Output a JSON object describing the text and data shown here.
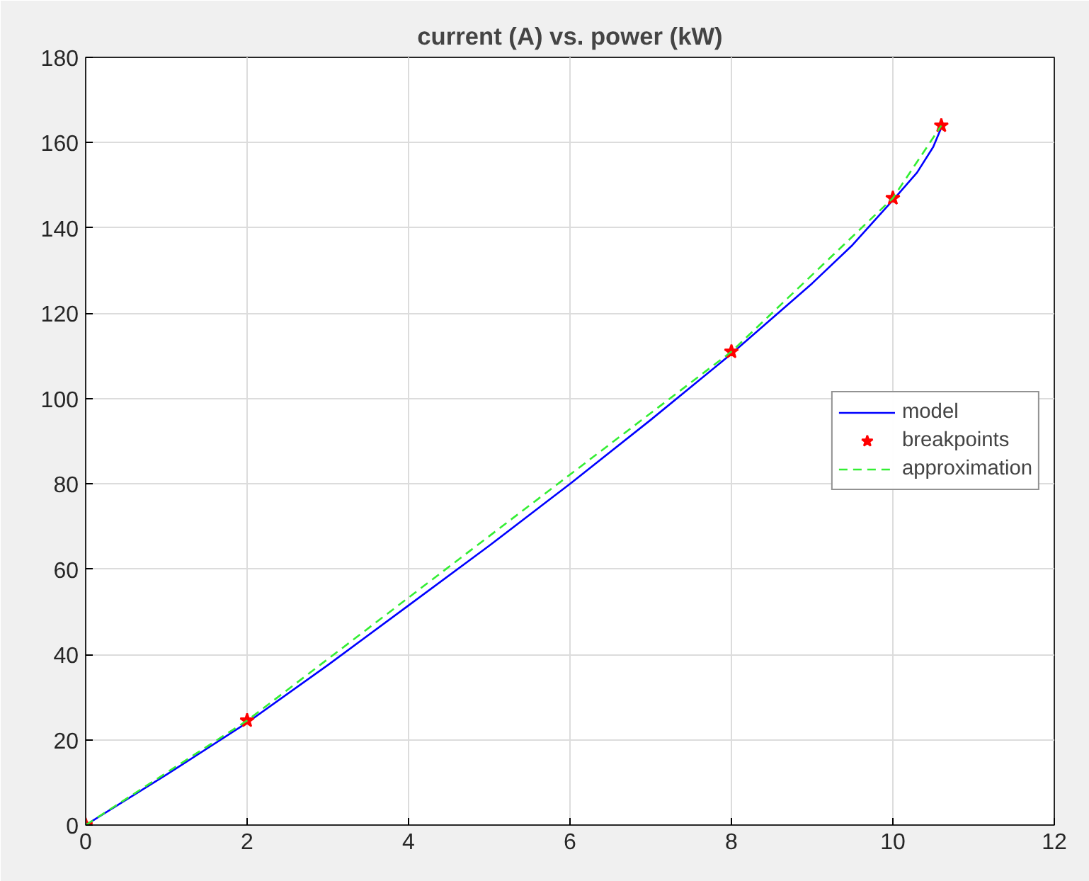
{
  "chart_data": {
    "type": "line",
    "title": "current (A) vs. power (kW)",
    "xlim": [
      0,
      12
    ],
    "ylim": [
      0,
      180
    ],
    "xticks": [
      0,
      2,
      4,
      6,
      8,
      10,
      12
    ],
    "yticks": [
      0,
      20,
      40,
      60,
      80,
      100,
      120,
      140,
      160,
      180
    ],
    "grid": true,
    "legend": "right",
    "series": [
      {
        "name": "model",
        "color": "#0000ff",
        "marker": "none",
        "line_style": "solid",
        "x": [
          0,
          1,
          2,
          3,
          4,
          5,
          6,
          7,
          8,
          9,
          9.5,
          10,
          10.3,
          10.5,
          10.6
        ],
        "values": [
          0,
          11.8,
          24,
          37.5,
          51.5,
          65.5,
          80,
          95,
          110.5,
          127,
          136,
          146.5,
          153,
          159,
          163.5
        ]
      },
      {
        "name": "breakpoints",
        "type": "scatter",
        "color": "#ff0000",
        "marker": "star",
        "x": [
          0,
          2,
          8,
          10,
          10.6
        ],
        "values": [
          0,
          24.5,
          111,
          147,
          164
        ]
      },
      {
        "name": "approximation",
        "type": "line",
        "color": "#33ee33",
        "marker": "none",
        "line_style": "dashed",
        "x": [
          0,
          2,
          8,
          10,
          10.6
        ],
        "values": [
          0,
          24.5,
          111,
          147,
          164
        ]
      }
    ]
  }
}
